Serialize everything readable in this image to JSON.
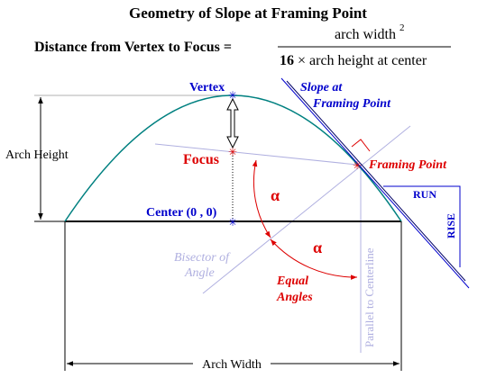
{
  "title": "Geometry of Slope at Framing Point",
  "formula": {
    "lhs": "Distance from Vertex to Focus =",
    "numerator": "arch width",
    "exponent": "2",
    "coefficient": "16",
    "denominator": "× arch height at center"
  },
  "labels": {
    "vertex": "Vertex",
    "slope": [
      "Slope at",
      "Framing Point"
    ],
    "arch_height": "Arch Height",
    "focus": "Focus",
    "framing_point": "Framing Point",
    "alpha_1": "α",
    "alpha_2": "α",
    "run": "RUN",
    "rise": "RISE",
    "center": "Center (0 , 0)",
    "bisector": [
      "Bisector of",
      "Angle"
    ],
    "equal_angles": [
      "Equal",
      "Angles"
    ],
    "parallel": "Parallel to Centerline",
    "arch_width": "Arch Width"
  }
}
